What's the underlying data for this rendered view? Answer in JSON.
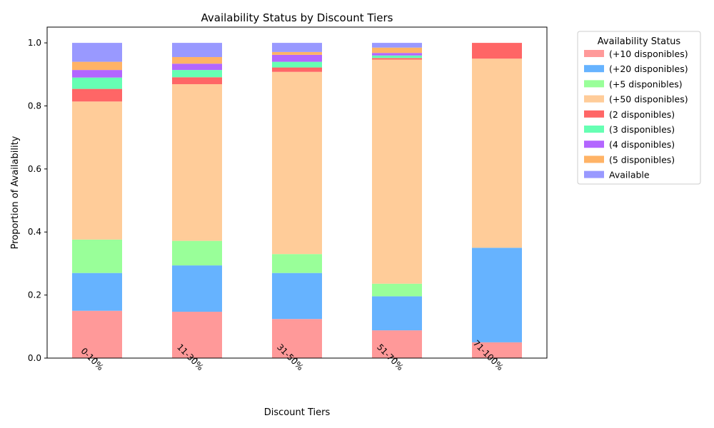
{
  "chart_data": {
    "type": "bar",
    "stacked": true,
    "title": "Availability Status by Discount Tiers",
    "xlabel": "Discount Tiers",
    "ylabel": "Proportion of Availability",
    "ylim": [
      0,
      1.05
    ],
    "yticks": [
      "0.0",
      "0.2",
      "0.4",
      "0.6",
      "0.8",
      "1.0"
    ],
    "ytick_values": [
      0,
      0.2,
      0.4,
      0.6,
      0.8,
      1.0
    ],
    "categories": [
      "0-10%",
      "11-30%",
      "31-50%",
      "51-70%",
      "71-100%"
    ],
    "grid": false,
    "legend": {
      "title": "Availability Status",
      "placement": "outside-right-top"
    },
    "series": [
      {
        "name": "(+10 disponibles)",
        "color": "#ff9999",
        "values": [
          0.15,
          0.147,
          0.124,
          0.088,
          0.05
        ]
      },
      {
        "name": "(+20 disponibles)",
        "color": "#66b3ff",
        "values": [
          0.12,
          0.147,
          0.146,
          0.108,
          0.3
        ]
      },
      {
        "name": "(+5 disponibles)",
        "color": "#99ff99",
        "values": [
          0.106,
          0.078,
          0.06,
          0.04,
          0.0
        ]
      },
      {
        "name": "(+50 disponibles)",
        "color": "#ffcc99",
        "values": [
          0.438,
          0.497,
          0.578,
          0.711,
          0.6
        ]
      },
      {
        "name": "(2 disponibles)",
        "color": "#ff6666",
        "values": [
          0.04,
          0.022,
          0.014,
          0.005,
          0.05
        ]
      },
      {
        "name": "(3 disponibles)",
        "color": "#66ffb3",
        "values": [
          0.036,
          0.023,
          0.018,
          0.008,
          0.0
        ]
      },
      {
        "name": "(4 disponibles)",
        "color": "#b366ff",
        "values": [
          0.024,
          0.02,
          0.022,
          0.008,
          0.0
        ]
      },
      {
        "name": "(5 disponibles)",
        "color": "#ffb366",
        "values": [
          0.026,
          0.021,
          0.009,
          0.017,
          0.0
        ]
      },
      {
        "name": "Available",
        "color": "#9999ff",
        "values": [
          0.06,
          0.045,
          0.029,
          0.015,
          0.0
        ]
      }
    ]
  }
}
